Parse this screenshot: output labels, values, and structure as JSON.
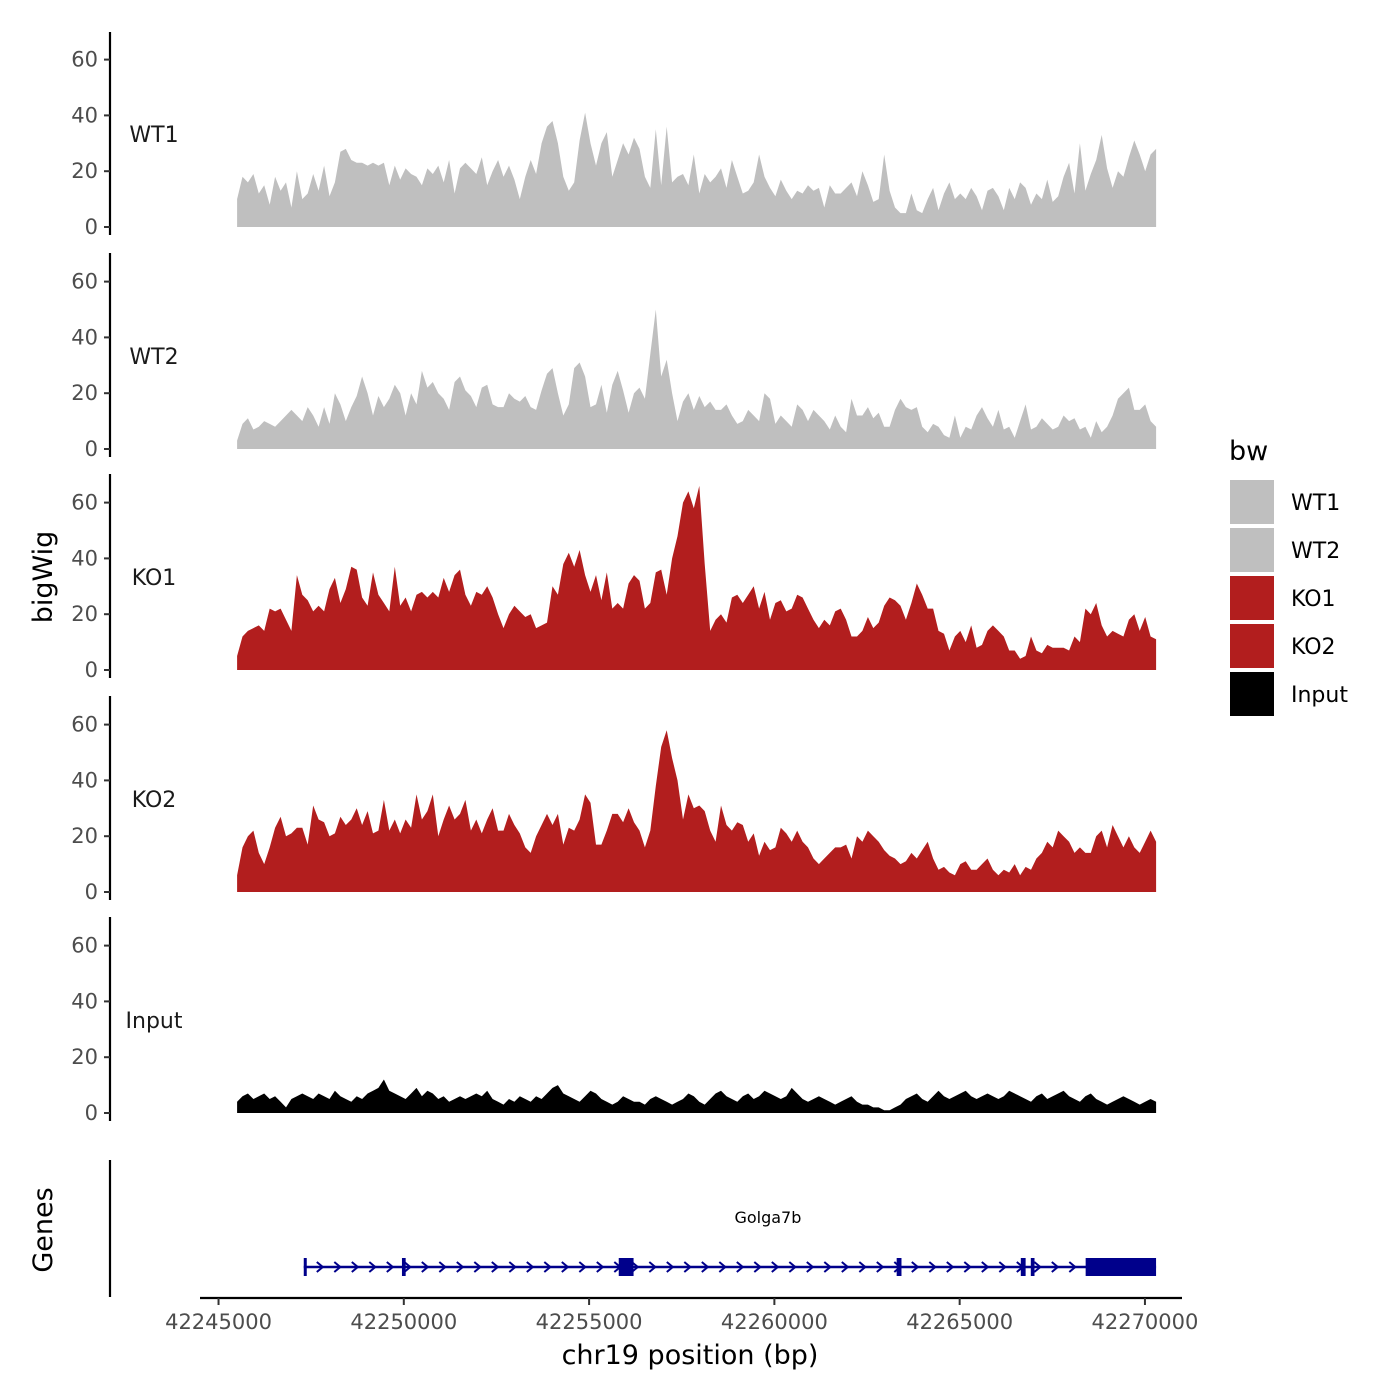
{
  "chart_data": {
    "type": "area",
    "ylabel": "bigWig",
    "xlabel": "chr19 position (bp)",
    "genes_label": "Genes",
    "x_range": [
      42244500,
      42271000
    ],
    "signal_x_range": [
      42245500,
      42270300
    ],
    "y_range": [
      0,
      70
    ],
    "y_ticks": [
      {
        "value": 0,
        "label": "0"
      },
      {
        "value": 20,
        "label": "20"
      },
      {
        "value": 40,
        "label": "40"
      },
      {
        "value": 60,
        "label": "60"
      }
    ],
    "x_ticks": [
      {
        "value": 42245000,
        "label": "42245000"
      },
      {
        "value": 42250000,
        "label": "42250000"
      },
      {
        "value": 42255000,
        "label": "42255000"
      },
      {
        "value": 42260000,
        "label": "42260000"
      },
      {
        "value": 42265000,
        "label": "42265000"
      },
      {
        "value": 42270000,
        "label": "42270000"
      }
    ],
    "legend": {
      "title": "bw",
      "position": "right",
      "entries": [
        {
          "label": "WT1",
          "color": "#bfbfbf"
        },
        {
          "label": "WT2",
          "color": "#bfbfbf"
        },
        {
          "label": "KO1",
          "color": "#b21e1e"
        },
        {
          "label": "KO2",
          "color": "#b21e1e"
        },
        {
          "label": "Input",
          "color": "#000000"
        }
      ]
    },
    "series": [
      {
        "name": "WT1",
        "color": "#bfbfbf",
        "values": [
          10,
          18,
          16,
          19,
          12,
          15,
          8,
          18,
          13,
          16,
          7,
          20,
          10,
          12,
          19,
          13,
          22,
          11,
          16,
          27,
          28,
          24,
          23,
          23,
          22,
          23,
          22,
          23,
          15,
          22,
          17,
          21,
          19,
          18,
          15,
          21,
          19,
          22,
          16,
          24,
          12,
          21,
          23,
          21,
          19,
          25,
          15,
          20,
          24,
          18,
          22,
          17,
          10,
          18,
          24,
          19,
          30,
          36,
          38,
          30,
          18,
          13,
          16,
          31,
          41,
          30,
          22,
          30,
          34,
          18,
          24,
          30,
          26,
          32,
          28,
          18,
          14,
          35,
          15,
          36,
          16,
          18,
          19,
          15,
          26,
          12,
          19,
          16,
          18,
          21,
          14,
          24,
          18,
          12,
          13,
          16,
          26,
          18,
          14,
          11,
          17,
          13,
          10,
          13,
          12,
          15,
          13,
          14,
          7,
          15,
          12,
          12,
          14,
          16,
          11,
          20,
          15,
          9,
          10,
          26,
          13,
          7,
          5,
          5,
          12,
          6,
          5,
          10,
          14,
          6,
          12,
          16,
          10,
          12,
          10,
          14,
          11,
          6,
          13,
          14,
          11,
          6,
          14,
          10,
          16,
          14,
          8,
          12,
          10,
          17,
          9,
          11,
          18,
          23,
          12,
          30,
          13,
          19,
          24,
          33,
          21,
          14,
          20,
          18,
          25,
          31,
          26,
          20,
          26,
          28
        ]
      },
      {
        "name": "WT2",
        "color": "#bfbfbf",
        "values": [
          3,
          9,
          11,
          7,
          8,
          10,
          9,
          8,
          10,
          12,
          14,
          12,
          10,
          15,
          12,
          8,
          15,
          9,
          20,
          16,
          10,
          15,
          19,
          26,
          20,
          12,
          19,
          15,
          18,
          23,
          20,
          12,
          20,
          16,
          28,
          22,
          24,
          20,
          18,
          14,
          24,
          26,
          21,
          19,
          15,
          22,
          23,
          16,
          15,
          15,
          20,
          18,
          17,
          19,
          15,
          14,
          21,
          27,
          29,
          20,
          12,
          16,
          29,
          31,
          26,
          15,
          16,
          23,
          13,
          23,
          28,
          21,
          13,
          20,
          22,
          18,
          34,
          50,
          26,
          32,
          20,
          10,
          17,
          20,
          14,
          19,
          15,
          17,
          14,
          14,
          16,
          12,
          9,
          10,
          14,
          12,
          10,
          20,
          18,
          9,
          12,
          10,
          8,
          16,
          14,
          10,
          14,
          12,
          10,
          7,
          12,
          8,
          6,
          18,
          12,
          12,
          15,
          11,
          13,
          8,
          8,
          14,
          18,
          15,
          14,
          15,
          8,
          6,
          9,
          8,
          5,
          4,
          12,
          4,
          8,
          7,
          12,
          15,
          11,
          8,
          14,
          7,
          8,
          4,
          10,
          16,
          7,
          8,
          11,
          9,
          7,
          8,
          12,
          10,
          11,
          7,
          8,
          4,
          10,
          6,
          8,
          12,
          18,
          20,
          22,
          14,
          14,
          16,
          10,
          8
        ]
      },
      {
        "name": "KO1",
        "color": "#b21e1e",
        "values": [
          5,
          12,
          14,
          15,
          16,
          14,
          22,
          21,
          22,
          18,
          14,
          34,
          27,
          25,
          21,
          23,
          21,
          29,
          33,
          24,
          29,
          37,
          36,
          26,
          23,
          35,
          27,
          24,
          21,
          37,
          23,
          26,
          21,
          27,
          28,
          26,
          28,
          26,
          33,
          28,
          34,
          36,
          27,
          23,
          28,
          27,
          30,
          26,
          20,
          15,
          20,
          23,
          21,
          19,
          20,
          15,
          16,
          17,
          30,
          27,
          38,
          42,
          37,
          43,
          34,
          28,
          34,
          25,
          35,
          22,
          24,
          22,
          31,
          34,
          32,
          22,
          24,
          35,
          36,
          27,
          40,
          48,
          60,
          64,
          58,
          66,
          38,
          14,
          18,
          20,
          17,
          26,
          27,
          24,
          27,
          30,
          22,
          28,
          18,
          24,
          25,
          21,
          22,
          27,
          26,
          22,
          18,
          15,
          18,
          16,
          21,
          22,
          18,
          12,
          12,
          14,
          19,
          15,
          17,
          23,
          26,
          25,
          23,
          18,
          24,
          31,
          27,
          22,
          22,
          14,
          13,
          7,
          12,
          14,
          10,
          16,
          8,
          9,
          14,
          16,
          14,
          12,
          7,
          7,
          4,
          5,
          12,
          7,
          6,
          9,
          8,
          8,
          8,
          7,
          12,
          10,
          22,
          20,
          24,
          16,
          12,
          14,
          13,
          12,
          18,
          20,
          14,
          19,
          12,
          11
        ]
      },
      {
        "name": "KO2",
        "color": "#b21e1e",
        "values": [
          6,
          16,
          20,
          22,
          14,
          10,
          16,
          23,
          27,
          20,
          21,
          23,
          23,
          17,
          31,
          26,
          25,
          20,
          21,
          27,
          24,
          26,
          30,
          24,
          29,
          21,
          22,
          33,
          22,
          26,
          21,
          26,
          23,
          35,
          26,
          29,
          35,
          20,
          26,
          31,
          26,
          28,
          33,
          22,
          26,
          21,
          26,
          30,
          22,
          22,
          28,
          24,
          21,
          16,
          14,
          20,
          24,
          28,
          24,
          28,
          17,
          23,
          22,
          26,
          35,
          32,
          17,
          17,
          22,
          28,
          28,
          25,
          30,
          25,
          22,
          16,
          22,
          38,
          52,
          58,
          48,
          40,
          26,
          35,
          30,
          31,
          29,
          22,
          18,
          31,
          24,
          22,
          25,
          24,
          18,
          21,
          13,
          18,
          15,
          16,
          23,
          21,
          18,
          22,
          18,
          16,
          12,
          10,
          12,
          14,
          16,
          16,
          17,
          12,
          20,
          18,
          22,
          20,
          18,
          15,
          13,
          12,
          10,
          11,
          14,
          12,
          15,
          18,
          12,
          8,
          9,
          7,
          6,
          10,
          11,
          8,
          8,
          10,
          12,
          8,
          6,
          8,
          7,
          10,
          6,
          9,
          8,
          12,
          14,
          18,
          16,
          22,
          20,
          18,
          14,
          16,
          14,
          14,
          20,
          22,
          16,
          24,
          20,
          16,
          20,
          16,
          14,
          18,
          22,
          18
        ]
      },
      {
        "name": "Input",
        "color": "#000000",
        "values": [
          4,
          6,
          7,
          5,
          6,
          7,
          5,
          6,
          4,
          2,
          5,
          6,
          7,
          6,
          5,
          7,
          6,
          5,
          8,
          6,
          5,
          4,
          6,
          5,
          7,
          8,
          9,
          12,
          8,
          7,
          6,
          5,
          7,
          9,
          6,
          8,
          7,
          5,
          6,
          4,
          5,
          6,
          5,
          6,
          7,
          6,
          8,
          5,
          4,
          3,
          5,
          4,
          6,
          5,
          4,
          6,
          5,
          7,
          9,
          10,
          7,
          6,
          5,
          4,
          6,
          8,
          7,
          5,
          4,
          3,
          4,
          6,
          5,
          4,
          4,
          3,
          5,
          6,
          5,
          4,
          3,
          4,
          5,
          7,
          6,
          4,
          3,
          5,
          7,
          8,
          6,
          5,
          4,
          6,
          7,
          5,
          6,
          8,
          7,
          6,
          5,
          6,
          9,
          7,
          5,
          4,
          5,
          6,
          5,
          4,
          3,
          4,
          5,
          6,
          4,
          3,
          3,
          2,
          2,
          1,
          1,
          2,
          3,
          5,
          6,
          7,
          5,
          4,
          6,
          8,
          6,
          5,
          6,
          7,
          8,
          6,
          5,
          6,
          7,
          6,
          5,
          6,
          8,
          7,
          6,
          5,
          4,
          6,
          7,
          5,
          6,
          7,
          8,
          6,
          5,
          4,
          6,
          7,
          5,
          4,
          3,
          4,
          5,
          6,
          5,
          4,
          3,
          4,
          5,
          4
        ]
      }
    ],
    "gene": {
      "name": "Golga7b",
      "start": 42247300,
      "end": 42270300,
      "strand": "+",
      "color": "#00008b",
      "exons": [
        {
          "start": 42247300,
          "end": 42247360
        },
        {
          "start": 42249950,
          "end": 42250050
        },
        {
          "start": 42255800,
          "end": 42256200
        },
        {
          "start": 42263300,
          "end": 42263430
        },
        {
          "start": 42266650,
          "end": 42266780
        },
        {
          "start": 42266920,
          "end": 42267020
        },
        {
          "start": 42268400,
          "end": 42270300
        }
      ]
    }
  }
}
